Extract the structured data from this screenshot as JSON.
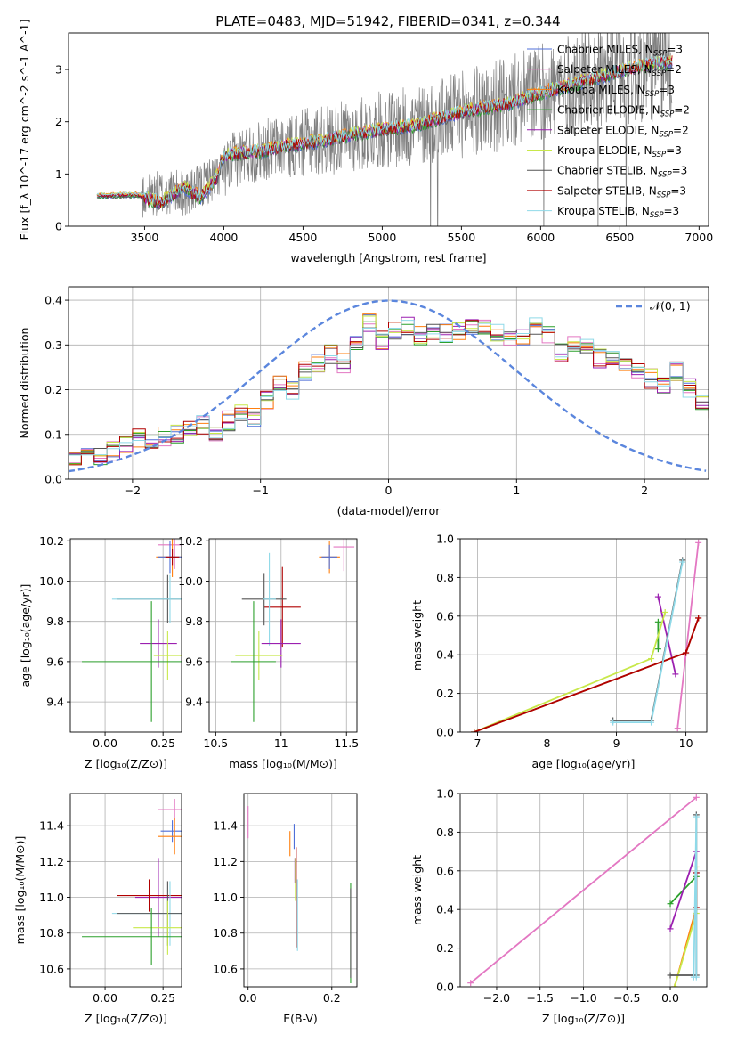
{
  "figure_title": "PLATE=0483, MJD=51942, FIBERID=0341, z=0.344",
  "colors": {
    "Chabrier MILES": "#4f6fd8",
    "Salpeter MILES": "#e377c2",
    "Kroupa MILES": "#ff7f0e",
    "Chabrier ELODIE": "#2ca02c",
    "Salpeter ELODIE": "#9b1fb0",
    "Kroupa ELODIE": "#c8e84a",
    "Chabrier STELIB": "#555555",
    "Salpeter STELIB": "#b00000",
    "Kroupa STELIB": "#8fd9e8"
  },
  "chart_data": [
    {
      "id": "spectrum",
      "type": "line",
      "title": "PLATE=0483, MJD=51942, FIBERID=0341, z=0.344",
      "xlabel": "wavelength [Angstrom, rest frame]",
      "ylabel": "Flux [f_λ 10^-17 erg cm^-2 s^-1 A^-1]",
      "xlim": [
        3020,
        7060
      ],
      "ylim": [
        0,
        3.7
      ],
      "xticks": [
        3500,
        4000,
        4500,
        5000,
        5500,
        6000,
        6500,
        7000
      ],
      "yticks": [
        0,
        1,
        2,
        3
      ],
      "legend_position": "top-right",
      "legend": [
        {
          "label": "Chabrier MILES, N",
          "sub": "SSP",
          "suffix": "=3"
        },
        {
          "label": "Salpeter MILES, N",
          "sub": "SSP",
          "suffix": "=2"
        },
        {
          "label": "Kroupa MILES, N",
          "sub": "SSP",
          "suffix": "=3"
        },
        {
          "label": "Chabrier ELODIE, N",
          "sub": "SSP",
          "suffix": "=2"
        },
        {
          "label": "Salpeter ELODIE, N",
          "sub": "SSP",
          "suffix": "=2"
        },
        {
          "label": "Kroupa ELODIE, N",
          "sub": "SSP",
          "suffix": "=3"
        },
        {
          "label": "Chabrier STELIB, N",
          "sub": "SSP",
          "suffix": "=3"
        },
        {
          "label": "Salpeter STELIB, N",
          "sub": "SSP",
          "suffix": "=3"
        },
        {
          "label": "Kroupa STELIB, N",
          "sub": "SSP",
          "suffix": "=3"
        }
      ],
      "data_trace": {
        "color": "#808080",
        "x_range": [
          3200,
          6830
        ],
        "continuum": [
          [
            3200,
            0.6
          ],
          [
            3500,
            0.6
          ],
          [
            3800,
            0.65
          ],
          [
            3950,
            0.95
          ],
          [
            4100,
            1.35
          ],
          [
            4300,
            1.5
          ],
          [
            4500,
            1.6
          ],
          [
            4800,
            1.72
          ],
          [
            5000,
            1.85
          ],
          [
            5200,
            1.9
          ],
          [
            5500,
            2.15
          ],
          [
            5800,
            2.35
          ],
          [
            6000,
            2.55
          ],
          [
            6200,
            2.7
          ],
          [
            6400,
            2.85
          ],
          [
            6600,
            3.0
          ],
          [
            6830,
            3.1
          ]
        ]
      },
      "models_continuum": [
        [
          3200,
          0.58
        ],
        [
          3450,
          0.6
        ],
        [
          3600,
          0.45
        ],
        [
          3750,
          0.75
        ],
        [
          3850,
          0.55
        ],
        [
          3950,
          0.9
        ],
        [
          4000,
          1.35
        ],
        [
          4100,
          1.4
        ],
        [
          4250,
          1.45
        ],
        [
          4400,
          1.55
        ],
        [
          4600,
          1.62
        ],
        [
          4800,
          1.75
        ],
        [
          5000,
          1.85
        ],
        [
          5200,
          1.93
        ],
        [
          5400,
          2.1
        ],
        [
          5600,
          2.25
        ],
        [
          5800,
          2.35
        ],
        [
          6000,
          2.55
        ],
        [
          6200,
          2.72
        ],
        [
          6400,
          2.88
        ],
        [
          6600,
          3.05
        ],
        [
          6830,
          3.15
        ]
      ]
    },
    {
      "id": "residual_hist",
      "type": "step",
      "xlabel": "(data-model)/error",
      "ylabel": "Normed distribution",
      "xlim": [
        -2.5,
        2.5
      ],
      "ylim": [
        0,
        0.43
      ],
      "xticks": [
        -2,
        -1,
        0,
        1,
        2
      ],
      "yticks": [
        0.0,
        0.1,
        0.2,
        0.3,
        0.4
      ],
      "legend_position": "top-right",
      "gaussian_label": "𝒩(0, 1)",
      "gaussian_color": "#5b86dd",
      "bin_width": 0.1,
      "bins_start": -2.5,
      "base_profile": [
        0.04,
        0.048,
        0.055,
        0.065,
        0.075,
        0.09,
        0.083,
        0.095,
        0.1,
        0.11,
        0.12,
        0.105,
        0.13,
        0.15,
        0.14,
        0.175,
        0.22,
        0.2,
        0.24,
        0.26,
        0.28,
        0.26,
        0.3,
        0.35,
        0.31,
        0.33,
        0.34,
        0.32,
        0.33,
        0.325,
        0.33,
        0.335,
        0.345,
        0.33,
        0.32,
        0.315,
        0.34,
        0.32,
        0.28,
        0.3,
        0.29,
        0.27,
        0.275,
        0.26,
        0.245,
        0.225,
        0.21,
        0.24,
        0.205,
        0.175,
        0.16,
        0.15,
        0.155,
        0.13,
        0.115,
        0.11,
        0.1,
        0.09,
        0.08,
        0.085,
        0.075,
        0.065,
        0.06,
        0.055,
        0.045,
        0.045,
        0.035,
        0.03,
        0.027,
        0.025
      ]
    },
    {
      "id": "age_vs_Z",
      "type": "scatter",
      "xlabel": "Z [log₁₀(Z/Z⊙)]",
      "ylabel": "age  [log₁₀(age/yr)]",
      "xlim": [
        -0.15,
        0.33
      ],
      "ylim": [
        9.25,
        10.21
      ],
      "xticks": [
        0.0,
        0.25
      ],
      "xticklabels": [
        "0.00",
        "0.25"
      ],
      "yticks": [
        9.4,
        9.6,
        9.8,
        10.0,
        10.2
      ],
      "points": [
        {
          "s": "Salpeter MILES",
          "x": 0.3,
          "y": 10.18,
          "xerr": 0.07,
          "yerr": 0.12
        },
        {
          "s": "Kroupa MILES",
          "x": 0.29,
          "y": 10.12,
          "xerr": 0.07,
          "yerr": 0.1
        },
        {
          "s": "Chabrier MILES",
          "x": 0.28,
          "y": 10.12,
          "xerr": 0.05,
          "yerr": 0.08
        },
        {
          "s": "Chabrier STELIB",
          "x": 0.27,
          "y": 9.91,
          "xerr": 0.22,
          "yerr": 0.12
        },
        {
          "s": "Kroupa STELIB",
          "x": 0.28,
          "y": 9.91,
          "xerr": 0.25,
          "yerr": 0.12
        },
        {
          "s": "Salpeter ELODIE",
          "x": 0.23,
          "y": 9.69,
          "xerr": 0.08,
          "yerr": 0.12
        },
        {
          "s": "Kroupa ELODIE",
          "x": 0.27,
          "y": 9.63,
          "xerr": 0.06,
          "yerr": 0.12
        },
        {
          "s": "Chabrier ELODIE",
          "x": 0.2,
          "y": 9.6,
          "xerr": 0.3,
          "yerr": 0.3
        },
        {
          "s": "Salpeter STELIB",
          "x": 0.29,
          "y": 10.12,
          "xerr": 0.03,
          "yerr": 0.04
        }
      ]
    },
    {
      "id": "age_vs_mass",
      "type": "scatter",
      "xlabel": "mass [log₁₀(M/M⊙)]",
      "ylabel": "",
      "xlim": [
        10.45,
        11.58
      ],
      "ylim": [
        9.25,
        10.21
      ],
      "xticks": [
        10.5,
        11.0,
        11.5
      ],
      "yticks": [
        9.4,
        9.6,
        9.8,
        10.0,
        10.2
      ],
      "points": [
        {
          "s": "Salpeter MILES",
          "x": 11.48,
          "y": 10.17,
          "xerr": 0.08,
          "yerr": 0.12
        },
        {
          "s": "Kroupa MILES",
          "x": 11.37,
          "y": 10.12,
          "xerr": 0.08,
          "yerr": 0.08
        },
        {
          "s": "Chabrier MILES",
          "x": 11.37,
          "y": 10.12,
          "xerr": 0.06,
          "yerr": 0.06
        },
        {
          "s": "Salpeter STELIB",
          "x": 11.01,
          "y": 9.87,
          "xerr": 0.14,
          "yerr": 0.2
        },
        {
          "s": "Chabrier STELIB",
          "x": 10.87,
          "y": 9.91,
          "xerr": 0.17,
          "yerr": 0.13
        },
        {
          "s": "Kroupa STELIB",
          "x": 10.91,
          "y": 9.91,
          "xerr": 0.05,
          "yerr": 0.23
        },
        {
          "s": "Salpeter ELODIE",
          "x": 11.0,
          "y": 9.69,
          "xerr": 0.15,
          "yerr": 0.12
        },
        {
          "s": "Kroupa ELODIE",
          "x": 10.83,
          "y": 9.63,
          "xerr": 0.18,
          "yerr": 0.12
        },
        {
          "s": "Chabrier ELODIE",
          "x": 10.79,
          "y": 9.6,
          "xerr": 0.17,
          "yerr": 0.3
        }
      ]
    },
    {
      "id": "weight_vs_age",
      "type": "line",
      "xlabel": "age  [log₁₀(age/yr)]",
      "ylabel": "mass weight",
      "xlim": [
        6.75,
        10.3
      ],
      "ylim": [
        0,
        1.0
      ],
      "xticks": [
        7,
        8,
        9,
        10
      ],
      "yticks": [
        0.0,
        0.2,
        0.4,
        0.6,
        0.8,
        1.0
      ],
      "series": [
        {
          "s": "Chabrier MILES",
          "points": [
            [
              6.95,
              0.0
            ],
            [
              10.0,
              0.41
            ],
            [
              10.18,
              0.59
            ]
          ]
        },
        {
          "s": "Salpeter MILES",
          "points": [
            [
              9.88,
              0.02
            ],
            [
              10.18,
              0.98
            ]
          ]
        },
        {
          "s": "Kroupa MILES",
          "points": [
            [
              6.95,
              0.0
            ],
            [
              10.0,
              0.41
            ],
            [
              10.18,
              0.59
            ]
          ]
        },
        {
          "s": "Chabrier ELODIE",
          "points": [
            [
              9.6,
              0.43
            ],
            [
              9.6,
              0.57
            ]
          ]
        },
        {
          "s": "Salpeter ELODIE",
          "points": [
            [
              9.6,
              0.7
            ],
            [
              9.85,
              0.3
            ]
          ]
        },
        {
          "s": "Kroupa ELODIE",
          "points": [
            [
              6.95,
              0.0
            ],
            [
              9.5,
              0.38
            ],
            [
              9.7,
              0.62
            ]
          ]
        },
        {
          "s": "Chabrier STELIB",
          "points": [
            [
              8.95,
              0.06
            ],
            [
              9.5,
              0.06
            ],
            [
              9.95,
              0.89
            ]
          ]
        },
        {
          "s": "Salpeter STELIB",
          "points": [
            [
              6.95,
              0.0
            ],
            [
              10.0,
              0.41
            ],
            [
              10.18,
              0.59
            ]
          ]
        },
        {
          "s": "Kroupa STELIB",
          "points": [
            [
              8.95,
              0.05
            ],
            [
              9.5,
              0.05
            ],
            [
              9.95,
              0.88
            ]
          ]
        }
      ]
    },
    {
      "id": "mass_vs_Z",
      "type": "scatter",
      "xlabel": "Z [log₁₀(Z/Z⊙)]",
      "ylabel": "mass [log₁₀(M/M⊙)]",
      "xlim": [
        -0.15,
        0.33
      ],
      "ylim": [
        10.5,
        11.58
      ],
      "xticks": [
        0.0,
        0.25
      ],
      "xticklabels": [
        "0.00",
        "0.25"
      ],
      "yticks": [
        10.6,
        10.8,
        11.0,
        11.2,
        11.4
      ],
      "points": [
        {
          "s": "Salpeter MILES",
          "x": 0.3,
          "y": 11.49,
          "xerr": 0.07,
          "yerr": 0.06
        },
        {
          "s": "Chabrier MILES",
          "x": 0.29,
          "y": 11.37,
          "xerr": 0.05,
          "yerr": 0.06
        },
        {
          "s": "Kroupa MILES",
          "x": 0.3,
          "y": 11.34,
          "xerr": 0.07,
          "yerr": 0.1
        },
        {
          "s": "Salpeter ELODIE",
          "x": 0.23,
          "y": 11.0,
          "xerr": 0.1,
          "yerr": 0.22
        },
        {
          "s": "Salpeter STELIB",
          "x": 0.19,
          "y": 11.01,
          "xerr": 0.14,
          "yerr": 0.09
        },
        {
          "s": "Kroupa STELIB",
          "x": 0.28,
          "y": 10.91,
          "xerr": 0.25,
          "yerr": 0.18
        },
        {
          "s": "Chabrier STELIB",
          "x": 0.27,
          "y": 10.91,
          "xerr": 0.22,
          "yerr": 0.18
        },
        {
          "s": "Kroupa ELODIE",
          "x": 0.27,
          "y": 10.83,
          "xerr": 0.15,
          "yerr": 0.15
        },
        {
          "s": "Chabrier ELODIE",
          "x": 0.2,
          "y": 10.78,
          "xerr": 0.3,
          "yerr": 0.16
        }
      ]
    },
    {
      "id": "mass_vs_ebv",
      "type": "scatter",
      "xlabel": "E(B-V)",
      "ylabel": "",
      "xlim": [
        -0.01,
        0.26
      ],
      "ylim": [
        10.5,
        11.58
      ],
      "xticks": [
        0.0,
        0.2
      ],
      "xticklabels": [
        "0.0",
        "0.2"
      ],
      "yticks": [
        10.6,
        10.8,
        11.0,
        11.2,
        11.4
      ],
      "points": [
        {
          "s": "Salpeter MILES",
          "x": 0.0,
          "y": 11.42,
          "xerr": 0,
          "yerr": 0.09
        },
        {
          "s": "Kroupa MILES",
          "x": 0.1,
          "y": 11.3,
          "xerr": 0,
          "yerr": 0.07
        },
        {
          "s": "Chabrier MILES",
          "x": 0.11,
          "y": 11.34,
          "xerr": 0,
          "yerr": 0.07
        },
        {
          "s": "Salpeter ELODIE",
          "x": 0.112,
          "y": 11.15,
          "xerr": 0,
          "yerr": 0.07
        },
        {
          "s": "Kroupa ELODIE",
          "x": 0.113,
          "y": 11.1,
          "xerr": 0,
          "yerr": 0.12
        },
        {
          "s": "Salpeter STELIB",
          "x": 0.115,
          "y": 11.0,
          "xerr": 0,
          "yerr": 0.28
        },
        {
          "s": "Kroupa STELIB",
          "x": 0.118,
          "y": 10.9,
          "xerr": 0,
          "yerr": 0.2
        },
        {
          "s": "Chabrier ELODIE",
          "x": 0.245,
          "y": 10.8,
          "xerr": 0,
          "yerr": 0.28
        },
        {
          "s": "Chabrier STELIB",
          "x": 0.245,
          "y": 10.8,
          "xerr": 0,
          "yerr": 0.25
        }
      ]
    },
    {
      "id": "weight_vs_Z",
      "type": "line",
      "xlabel": "Z [log₁₀(Z/Z⊙)]",
      "ylabel": "mass weight",
      "xlim": [
        -2.42,
        0.42
      ],
      "ylim": [
        0,
        1.0
      ],
      "xticks": [
        -2.0,
        -1.5,
        -1.0,
        -0.5,
        0.0
      ],
      "xticklabels": [
        "−2.0",
        "−1.5",
        "−1.0",
        "−0.5",
        "0.0"
      ],
      "yticks": [
        0.0,
        0.2,
        0.4,
        0.6,
        0.8,
        1.0
      ],
      "series": [
        {
          "s": "Salpeter MILES",
          "points": [
            [
              -2.3,
              0.02
            ],
            [
              0.3,
              0.98
            ]
          ]
        },
        {
          "s": "Chabrier MILES",
          "points": [
            [
              0.3,
              0.41
            ],
            [
              0.3,
              0.59
            ]
          ]
        },
        {
          "s": "Kroupa MILES",
          "points": [
            [
              0.05,
              0.0
            ],
            [
              0.3,
              0.41
            ]
          ]
        },
        {
          "s": "Kroupa ELODIE",
          "points": [
            [
              0.05,
              0.0
            ],
            [
              0.3,
              0.38
            ],
            [
              0.3,
              0.62
            ]
          ]
        },
        {
          "s": "Chabrier ELODIE",
          "points": [
            [
              0.0,
              0.43
            ],
            [
              0.3,
              0.57
            ]
          ]
        },
        {
          "s": "Salpeter ELODIE",
          "points": [
            [
              0.0,
              0.3
            ],
            [
              0.3,
              0.7
            ]
          ]
        },
        {
          "s": "Chabrier STELIB",
          "points": [
            [
              0.0,
              0.06
            ],
            [
              0.3,
              0.06
            ],
            [
              0.3,
              0.89
            ]
          ]
        },
        {
          "s": "Salpeter STELIB",
          "points": [
            [
              0.3,
              0.41
            ],
            [
              0.3,
              0.59
            ]
          ]
        },
        {
          "s": "Kroupa STELIB",
          "points": [
            [
              0.27,
              0.05
            ],
            [
              0.3,
              0.88
            ],
            [
              0.3,
              0.05
            ]
          ]
        }
      ]
    }
  ]
}
